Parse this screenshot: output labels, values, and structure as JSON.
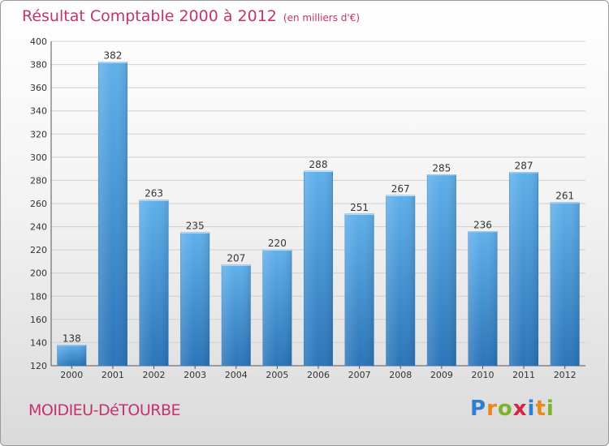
{
  "chart_data": {
    "type": "bar",
    "title": "Résultat Comptable 2000 à 2012",
    "subtitle": "(en milliers d'€)",
    "categories": [
      "2000",
      "2001",
      "2002",
      "2003",
      "2004",
      "2005",
      "2006",
      "2007",
      "2008",
      "2009",
      "2010",
      "2011",
      "2012"
    ],
    "values": [
      138,
      382,
      263,
      235,
      207,
      220,
      288,
      251,
      267,
      285,
      236,
      287,
      261
    ],
    "ylim": [
      120,
      400
    ],
    "yticks": [
      120,
      140,
      160,
      180,
      200,
      220,
      240,
      260,
      280,
      300,
      320,
      340,
      360,
      380,
      400
    ],
    "xlabel": "",
    "ylabel": "",
    "grid": true,
    "bar_color": "#3f93d8",
    "bar_color_light": "#5fb0eb",
    "bar_color_dark": "#2a74b8"
  },
  "footer": {
    "location": "MOIDIEU-DéTOURBE",
    "brand": [
      "P",
      "r",
      "o",
      "x",
      "i",
      "t",
      "i"
    ]
  }
}
